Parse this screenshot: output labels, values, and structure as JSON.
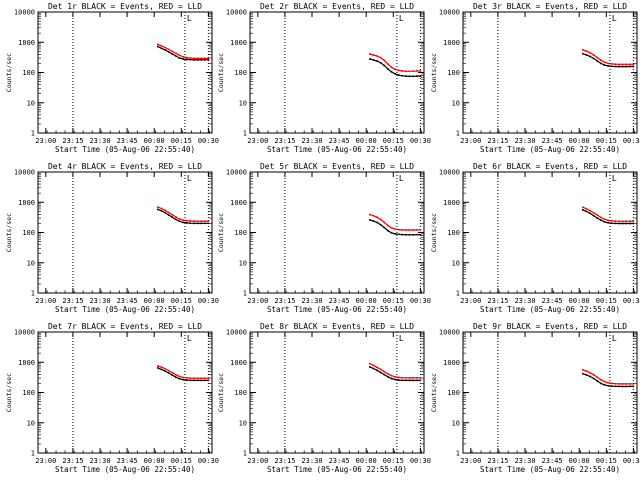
{
  "chart_data": {
    "type": "line",
    "layout": "3x3 grid",
    "x_axis": {
      "label": "Start Time (05-Aug-06 22:55:40)",
      "range": [
        "22:55:40",
        "00:32:00"
      ],
      "ticks": [
        "23:00",
        "23:15",
        "23:30",
        "23:45",
        "00:00",
        "00:15",
        "00:30"
      ]
    },
    "y_axis": {
      "label": "Counts/sec",
      "scale": "log",
      "range": [
        1,
        10000
      ],
      "ticks": [
        "1",
        "10",
        "100",
        "1000",
        "10000"
      ]
    },
    "vertical_markers": [
      "23:15",
      "00:17",
      "00:30"
    ],
    "marker_label": "L",
    "series_colors": {
      "events": "#000000",
      "lld": "#ff0000"
    },
    "panels": [
      {
        "title": "Det 1r BLACK = Events, RED = LLD",
        "x": [
          "00:02",
          "00:04",
          "00:06",
          "00:08",
          "00:10",
          "00:12",
          "00:14",
          "00:16",
          "00:18",
          "00:20",
          "00:22",
          "00:24",
          "00:26",
          "00:28",
          "00:30"
        ],
        "events": [
          720,
          630,
          560,
          480,
          410,
          350,
          300,
          280,
          270,
          265,
          260,
          260,
          260,
          262,
          265
        ],
        "lld": [
          850,
          760,
          670,
          580,
          500,
          430,
          370,
          330,
          310,
          300,
          295,
          293,
          292,
          293,
          295
        ]
      },
      {
        "title": "Det 2r BLACK = Events, RED = LLD",
        "x": [
          "00:02",
          "00:04",
          "00:06",
          "00:08",
          "00:10",
          "00:12",
          "00:14",
          "00:16",
          "00:18",
          "00:20",
          "00:22",
          "00:24",
          "00:26",
          "00:28",
          "00:30"
        ],
        "events": [
          280,
          260,
          240,
          210,
          170,
          130,
          105,
          90,
          82,
          78,
          76,
          75,
          75,
          76,
          76
        ],
        "lld": [
          410,
          380,
          350,
          310,
          250,
          190,
          150,
          128,
          118,
          112,
          110,
          110,
          110,
          112,
          112
        ]
      },
      {
        "title": "Det 3r BLACK = Events, RED = LLD",
        "x": [
          "00:02",
          "00:04",
          "00:06",
          "00:08",
          "00:10",
          "00:12",
          "00:14",
          "00:16",
          "00:18",
          "00:20",
          "00:22",
          "00:24",
          "00:26",
          "00:28",
          "00:30"
        ],
        "events": [
          420,
          380,
          340,
          290,
          240,
          200,
          175,
          165,
          160,
          158,
          157,
          157,
          157,
          158,
          158
        ],
        "lld": [
          560,
          510,
          450,
          380,
          310,
          255,
          220,
          200,
          192,
          188,
          186,
          186,
          186,
          187,
          187
        ]
      },
      {
        "title": "Det 4r BLACK = Events, RED = LLD",
        "x": [
          "00:02",
          "00:04",
          "00:06",
          "00:08",
          "00:10",
          "00:12",
          "00:14",
          "00:16",
          "00:18",
          "00:20",
          "00:22",
          "00:24",
          "00:26",
          "00:28",
          "00:30"
        ],
        "events": [
          580,
          520,
          450,
          380,
          320,
          270,
          235,
          215,
          207,
          203,
          201,
          200,
          200,
          201,
          201
        ],
        "lld": [
          690,
          620,
          540,
          460,
          385,
          325,
          280,
          255,
          245,
          240,
          238,
          237,
          237,
          238,
          238
        ]
      },
      {
        "title": "Det 5r BLACK = Events, RED = LLD",
        "x": [
          "00:02",
          "00:04",
          "00:06",
          "00:08",
          "00:10",
          "00:12",
          "00:14",
          "00:16",
          "00:18",
          "00:20",
          "00:22",
          "00:24",
          "00:26",
          "00:28",
          "00:30"
        ],
        "events": [
          260,
          240,
          215,
          180,
          145,
          115,
          98,
          90,
          87,
          85,
          84,
          84,
          84,
          85,
          85
        ],
        "lld": [
          390,
          360,
          320,
          270,
          215,
          170,
          143,
          130,
          125,
          122,
          121,
          121,
          121,
          122,
          122
        ]
      },
      {
        "title": "Det 6r BLACK = Events, RED = LLD",
        "x": [
          "00:02",
          "00:04",
          "00:06",
          "00:08",
          "00:10",
          "00:12",
          "00:14",
          "00:16",
          "00:18",
          "00:20",
          "00:22",
          "00:24",
          "00:26",
          "00:28",
          "00:30"
        ],
        "events": [
          560,
          500,
          430,
          360,
          300,
          255,
          225,
          210,
          203,
          200,
          199,
          198,
          198,
          199,
          199
        ],
        "lld": [
          680,
          610,
          530,
          450,
          375,
          315,
          275,
          252,
          243,
          238,
          236,
          235,
          235,
          236,
          236
        ]
      },
      {
        "title": "Det 7r BLACK = Events, RED = LLD",
        "x": [
          "00:02",
          "00:04",
          "00:06",
          "00:08",
          "00:10",
          "00:12",
          "00:14",
          "00:16",
          "00:18",
          "00:20",
          "00:22",
          "00:24",
          "00:26",
          "00:28",
          "00:30"
        ],
        "events": [
          650,
          580,
          510,
          440,
          375,
          320,
          285,
          265,
          258,
          254,
          252,
          251,
          251,
          252,
          252
        ],
        "lld": [
          760,
          690,
          610,
          530,
          450,
          385,
          340,
          315,
          305,
          300,
          298,
          297,
          297,
          298,
          298
        ]
      },
      {
        "title": "Det 8r BLACK = Events, RED = LLD",
        "x": [
          "00:02",
          "00:04",
          "00:06",
          "00:08",
          "00:10",
          "00:12",
          "00:14",
          "00:16",
          "00:18",
          "00:20",
          "00:22",
          "00:24",
          "00:26",
          "00:28",
          "00:30"
        ],
        "events": [
          700,
          620,
          540,
          460,
          390,
          330,
          290,
          268,
          258,
          254,
          252,
          251,
          251,
          252,
          252
        ],
        "lld": [
          900,
          790,
          680,
          580,
          490,
          415,
          360,
          330,
          315,
          308,
          305,
          304,
          304,
          305,
          305
        ]
      },
      {
        "title": "Det 9r BLACK = Events, RED = LLD",
        "x": [
          "00:02",
          "00:04",
          "00:06",
          "00:08",
          "00:10",
          "00:12",
          "00:14",
          "00:16",
          "00:18",
          "00:20",
          "00:22",
          "00:24",
          "00:26",
          "00:28",
          "00:30"
        ],
        "events": [
          420,
          380,
          340,
          290,
          240,
          200,
          178,
          168,
          163,
          160,
          159,
          158,
          158,
          159,
          159
        ],
        "lld": [
          560,
          510,
          450,
          385,
          320,
          265,
          230,
          210,
          200,
          195,
          193,
          192,
          192,
          193,
          193
        ]
      }
    ]
  }
}
